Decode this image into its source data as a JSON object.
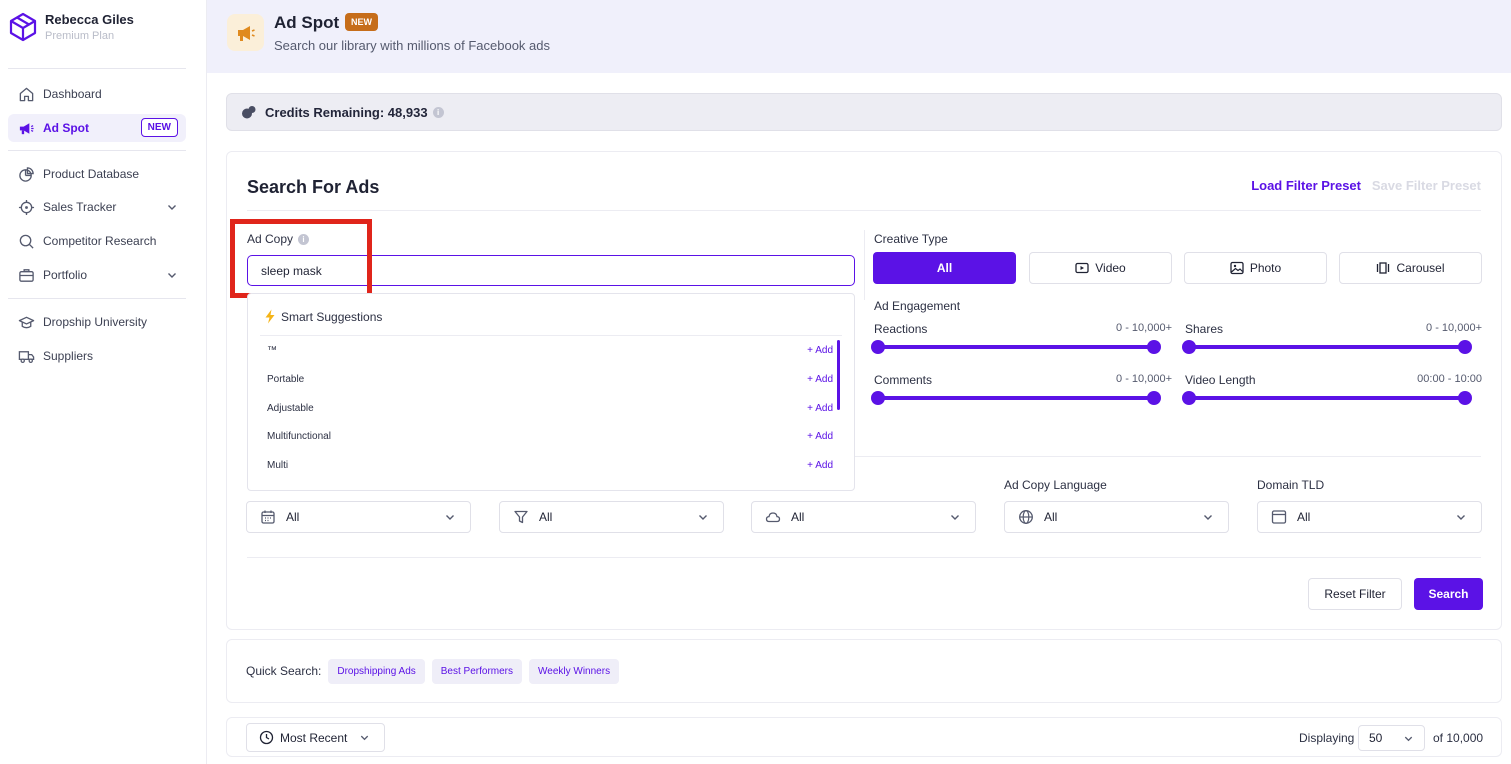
{
  "user": {
    "name": "Rebecca Giles",
    "plan": "Premium Plan"
  },
  "sidebar": {
    "items": [
      {
        "label": "Dashboard",
        "icon": "home-icon"
      },
      {
        "label": "Ad Spot",
        "icon": "megaphone-icon",
        "badge": "NEW",
        "active": true
      },
      {
        "label": "Product Database",
        "icon": "database-icon"
      },
      {
        "label": "Sales Tracker",
        "icon": "crosshair-icon",
        "expandable": true
      },
      {
        "label": "Competitor Research",
        "icon": "search-icon"
      },
      {
        "label": "Portfolio",
        "icon": "briefcase-icon",
        "expandable": true
      },
      {
        "label": "Dropship University",
        "icon": "graduation-cap-icon"
      },
      {
        "label": "Suppliers",
        "icon": "truck-icon"
      }
    ]
  },
  "header": {
    "title": "Ad Spot",
    "badge": "NEW",
    "subtitle": "Search our library with millions of Facebook ads"
  },
  "credits": {
    "text": "Credits Remaining: 48,933",
    "info": "i"
  },
  "search_panel": {
    "title": "Search For Ads",
    "load_preset": "Load Filter Preset",
    "save_preset": "Save Filter Preset",
    "ad_copy": {
      "label": "Ad Copy",
      "value": "sleep mask",
      "info": "i"
    },
    "suggestions": {
      "title": "Smart Suggestions",
      "add_label": "+ Add",
      "items": [
        "™",
        "Portable",
        "Adjustable",
        "Multifunctional",
        "Multi"
      ]
    },
    "creative_type": {
      "label": "Creative Type",
      "options": [
        {
          "label": "All",
          "icon": "none",
          "selected": true
        },
        {
          "label": "Video",
          "icon": "play-icon"
        },
        {
          "label": "Photo",
          "icon": "image-icon"
        },
        {
          "label": "Carousel",
          "icon": "carousel-icon"
        }
      ]
    },
    "engagement": {
      "label": "Ad Engagement",
      "ranges": [
        {
          "label": "Reactions",
          "value": "0 - 10,000+"
        },
        {
          "label": "Shares",
          "value": "0 - 10,000+"
        },
        {
          "label": "Comments",
          "value": "0 - 10,000+"
        },
        {
          "label": "Video Length",
          "value": "00:00 - 10:00"
        }
      ]
    },
    "dropdowns": [
      {
        "label": "",
        "value": "All",
        "icon": "calendar-icon"
      },
      {
        "label": "",
        "value": "All",
        "icon": "filter-icon"
      },
      {
        "label": "",
        "value": "All",
        "icon": "cloud-icon"
      },
      {
        "label": "Ad Copy Language",
        "value": "All",
        "icon": "globe-icon"
      },
      {
        "label": "Domain TLD",
        "value": "All",
        "icon": "browser-icon"
      }
    ],
    "reset_label": "Reset Filter",
    "search_label": "Search"
  },
  "quick_search": {
    "label": "Quick Search:",
    "chips": [
      "Dropshipping Ads",
      "Best Performers",
      "Weekly Winners"
    ]
  },
  "results_bar": {
    "sort": "Most Recent",
    "displaying_label": "Displaying",
    "per_page": "50",
    "total": "of 10,000"
  },
  "colors": {
    "accent": "#5b12e6",
    "header_bg": "#f0f0fb",
    "new_badge": "#c66d1a",
    "highlight": "#e0251b"
  }
}
